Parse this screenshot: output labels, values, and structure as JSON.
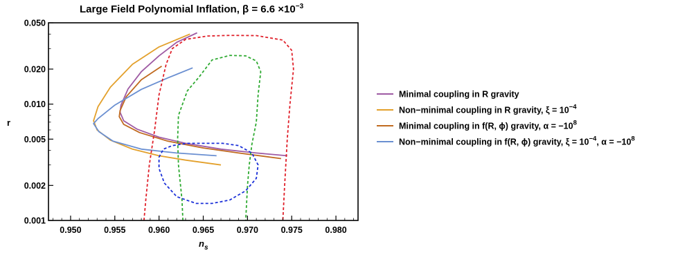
{
  "chart_data": {
    "type": "line",
    "title": "Large Field Polynomial Inflation, β = 6.6 ×10",
    "title_exponent": "−3",
    "xlabel": "n",
    "xlabel_sub": "s",
    "ylabel": "r",
    "xlim": [
      0.9475,
      0.9825
    ],
    "ylim": [
      0.001,
      0.05
    ],
    "yscale": "log",
    "grid": false,
    "legend_position": "right",
    "x_ticks": [
      {
        "v": 0.95,
        "label": "0.950"
      },
      {
        "v": 0.955,
        "label": "0.955"
      },
      {
        "v": 0.96,
        "label": "0.960"
      },
      {
        "v": 0.965,
        "label": "0.965"
      },
      {
        "v": 0.97,
        "label": "0.970"
      },
      {
        "v": 0.975,
        "label": "0.975"
      },
      {
        "v": 0.98,
        "label": "0.980"
      }
    ],
    "y_ticks": [
      {
        "v": 0.001,
        "label": "0.001"
      },
      {
        "v": 0.002,
        "label": "0.002"
      },
      {
        "v": 0.005,
        "label": "0.005"
      },
      {
        "v": 0.01,
        "label": "0.010"
      },
      {
        "v": 0.02,
        "label": "0.020"
      },
      {
        "v": 0.05,
        "label": "0.050"
      }
    ],
    "series": [
      {
        "name": "Minimal coupling in R gravity",
        "legend_text": "Minimal coupling in R gravity",
        "color": "#9e5aa3",
        "style": "solid",
        "points": [
          [
            0.9643,
            0.041
          ],
          [
            0.962,
            0.034
          ],
          [
            0.96,
            0.026
          ],
          [
            0.958,
            0.019
          ],
          [
            0.9565,
            0.0135
          ],
          [
            0.9557,
            0.0098
          ],
          [
            0.9556,
            0.0085
          ],
          [
            0.956,
            0.0072
          ],
          [
            0.9575,
            0.0061
          ],
          [
            0.96,
            0.0052
          ],
          [
            0.963,
            0.0046
          ],
          [
            0.967,
            0.0041
          ],
          [
            0.971,
            0.0038
          ],
          [
            0.9745,
            0.0036
          ]
        ]
      },
      {
        "name": "Non-minimal coupling in R gravity",
        "legend_text": "Non−minimal coupling in R gravity, ξ = 10",
        "legend_exp": "−4",
        "color": "#e3a02b",
        "style": "solid",
        "points": [
          [
            0.9635,
            0.04
          ],
          [
            0.96,
            0.031
          ],
          [
            0.957,
            0.022
          ],
          [
            0.9545,
            0.014
          ],
          [
            0.9531,
            0.0095
          ],
          [
            0.9526,
            0.0072
          ],
          [
            0.953,
            0.006
          ],
          [
            0.9545,
            0.0049
          ],
          [
            0.957,
            0.0041
          ],
          [
            0.96,
            0.0036
          ],
          [
            0.963,
            0.0033
          ],
          [
            0.967,
            0.003
          ]
        ]
      },
      {
        "name": "Minimal coupling in f(R, φ) gravity",
        "legend_text": "Minimal coupling in f(R, ϕ) gravity, α = −10",
        "legend_exp": "8",
        "color": "#c06a1f",
        "style": "solid",
        "points": [
          [
            0.9603,
            0.0212
          ],
          [
            0.958,
            0.0162
          ],
          [
            0.9563,
            0.0116
          ],
          [
            0.9556,
            0.0088
          ],
          [
            0.9555,
            0.0078
          ],
          [
            0.956,
            0.0067
          ],
          [
            0.9578,
            0.0057
          ],
          [
            0.961,
            0.0048
          ],
          [
            0.965,
            0.0042
          ],
          [
            0.969,
            0.0038
          ],
          [
            0.9738,
            0.0034
          ]
        ]
      },
      {
        "name": "Non-minimal coupling in f(R, φ) gravity",
        "legend_text": "Non−minimal coupling in f(R, ϕ) gravity, ξ = 10",
        "legend_exp": "−4",
        "legend_text2": ", α = −10",
        "legend_exp2": "8",
        "color": "#6a8fd1",
        "style": "solid",
        "points": [
          [
            0.9638,
            0.0205
          ],
          [
            0.961,
            0.0168
          ],
          [
            0.958,
            0.0134
          ],
          [
            0.955,
            0.0098
          ],
          [
            0.9531,
            0.0075
          ],
          [
            0.9526,
            0.0068
          ],
          [
            0.9532,
            0.0058
          ],
          [
            0.9548,
            0.0048
          ],
          [
            0.958,
            0.0041
          ],
          [
            0.962,
            0.0038
          ],
          [
            0.9665,
            0.0036
          ]
        ]
      },
      {
        "name": "contour-red",
        "color": "#e0202a",
        "style": "dashed",
        "points": [
          [
            0.9583,
            0.001
          ],
          [
            0.9585,
            0.0015
          ],
          [
            0.9589,
            0.003
          ],
          [
            0.9595,
            0.006
          ],
          [
            0.96,
            0.012
          ],
          [
            0.9608,
            0.022
          ],
          [
            0.9615,
            0.03
          ],
          [
            0.963,
            0.036
          ],
          [
            0.9655,
            0.0385
          ],
          [
            0.968,
            0.039
          ],
          [
            0.971,
            0.0388
          ],
          [
            0.974,
            0.0355
          ],
          [
            0.975,
            0.029
          ],
          [
            0.9752,
            0.02
          ],
          [
            0.9748,
            0.01
          ],
          [
            0.9745,
            0.005
          ],
          [
            0.9742,
            0.002
          ],
          [
            0.974,
            0.001
          ]
        ]
      },
      {
        "name": "contour-green",
        "color": "#2faa32",
        "style": "dashed",
        "points": [
          [
            0.9627,
            0.001
          ],
          [
            0.9626,
            0.0015
          ],
          [
            0.9622,
            0.003
          ],
          [
            0.9621,
            0.005
          ],
          [
            0.9622,
            0.008
          ],
          [
            0.9632,
            0.013
          ],
          [
            0.9645,
            0.017
          ],
          [
            0.966,
            0.024
          ],
          [
            0.968,
            0.0262
          ],
          [
            0.9698,
            0.026
          ],
          [
            0.971,
            0.0235
          ],
          [
            0.9715,
            0.019
          ],
          [
            0.9712,
            0.012
          ],
          [
            0.971,
            0.007
          ],
          [
            0.9705,
            0.0045
          ],
          [
            0.9702,
            0.003
          ],
          [
            0.97,
            0.002
          ],
          [
            0.9698,
            0.001
          ]
        ]
      },
      {
        "name": "contour-blue",
        "color": "#1a2fd8",
        "style": "dashed",
        "points": [
          [
            0.96,
            0.0035
          ],
          [
            0.9605,
            0.0041
          ],
          [
            0.9615,
            0.0044
          ],
          [
            0.9632,
            0.0046
          ],
          [
            0.965,
            0.0046
          ],
          [
            0.9672,
            0.0046
          ],
          [
            0.969,
            0.0044
          ],
          [
            0.9705,
            0.0038
          ],
          [
            0.9712,
            0.003
          ],
          [
            0.971,
            0.0023
          ],
          [
            0.9698,
            0.0018
          ],
          [
            0.968,
            0.0015
          ],
          [
            0.966,
            0.0014
          ],
          [
            0.9642,
            0.0014
          ],
          [
            0.962,
            0.0016
          ],
          [
            0.9606,
            0.0021
          ],
          [
            0.96,
            0.0028
          ],
          [
            0.96,
            0.0035
          ]
        ]
      }
    ]
  }
}
